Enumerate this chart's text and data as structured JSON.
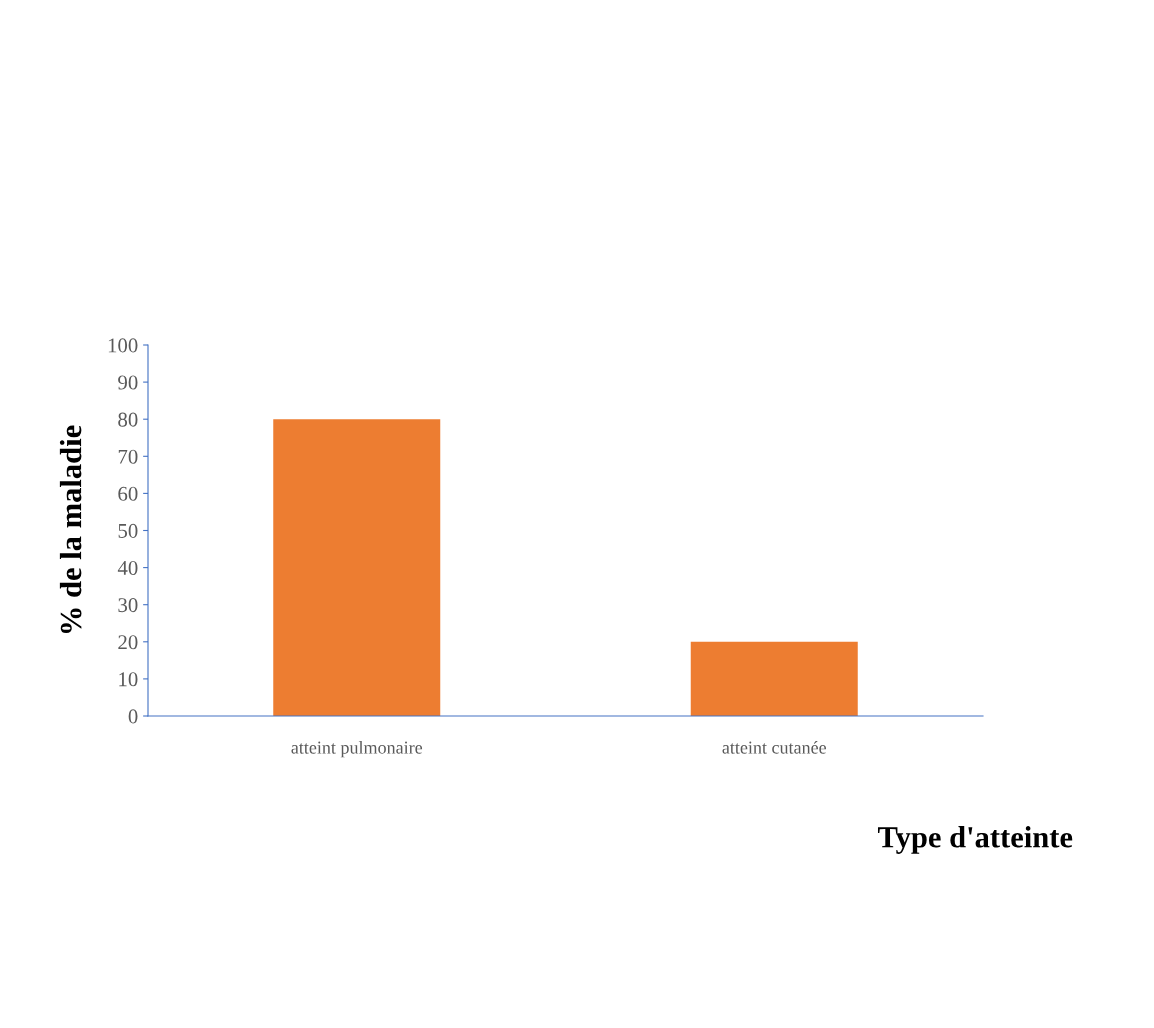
{
  "chart_data": {
    "type": "bar",
    "xlabel": "Type d'atteinte",
    "ylabel": "% de la maladie",
    "categories": [
      "atteint pulmonaire",
      "atteint cutanée"
    ],
    "values": [
      80,
      20
    ],
    "color": "#ed7d31",
    "ylim": [
      0,
      100
    ],
    "yticks": [
      0,
      10,
      20,
      30,
      40,
      50,
      60,
      70,
      80,
      90,
      100
    ],
    "grid": false,
    "legend": false
  }
}
